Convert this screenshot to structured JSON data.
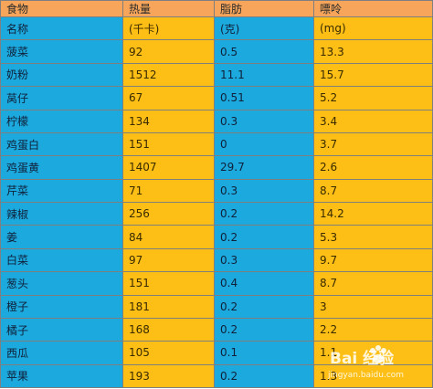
{
  "table": {
    "headers": [
      "食物",
      "热量",
      "脂肪",
      "嘌呤"
    ],
    "rows": [
      [
        "名称",
        "(千卡)",
        "(克)",
        "(mg)"
      ],
      [
        "菠菜",
        "92",
        "0.5",
        "13.3"
      ],
      [
        "奶粉",
        "1512",
        "11.1",
        "15.7"
      ],
      [
        "莴仔",
        "67",
        "0.51",
        "5.2"
      ],
      [
        "柠檬",
        "134",
        "0.3",
        "3.4"
      ],
      [
        "鸡蛋白",
        "151",
        "0",
        "3.7"
      ],
      [
        "鸡蛋黄",
        "1407",
        "29.7",
        "2.6"
      ],
      [
        "芹菜",
        "71",
        "0.3",
        "8.7"
      ],
      [
        "辣椒",
        "256",
        "0.2",
        "14.2"
      ],
      [
        "姜",
        "84",
        "0.2",
        "5.3"
      ],
      [
        "白菜",
        "97",
        "0.3",
        "9.7"
      ],
      [
        "葱头",
        "151",
        "0.4",
        "8.7"
      ],
      [
        "橙子",
        "181",
        "0.2",
        "3"
      ],
      [
        "橘子",
        "168",
        "0.2",
        "2.2"
      ],
      [
        "西瓜",
        "105",
        "0.1",
        "1.1"
      ],
      [
        "苹果",
        "193",
        "0.2",
        "1.3"
      ]
    ]
  },
  "colors": {
    "header": "#f6a55a",
    "blue_column": "#1ca9dd",
    "yellow_column": "#fdbf15",
    "grid": "#7f7f7f"
  },
  "watermark": {
    "logo": "Bai 经验",
    "url": "jingyan.baidu.com"
  }
}
